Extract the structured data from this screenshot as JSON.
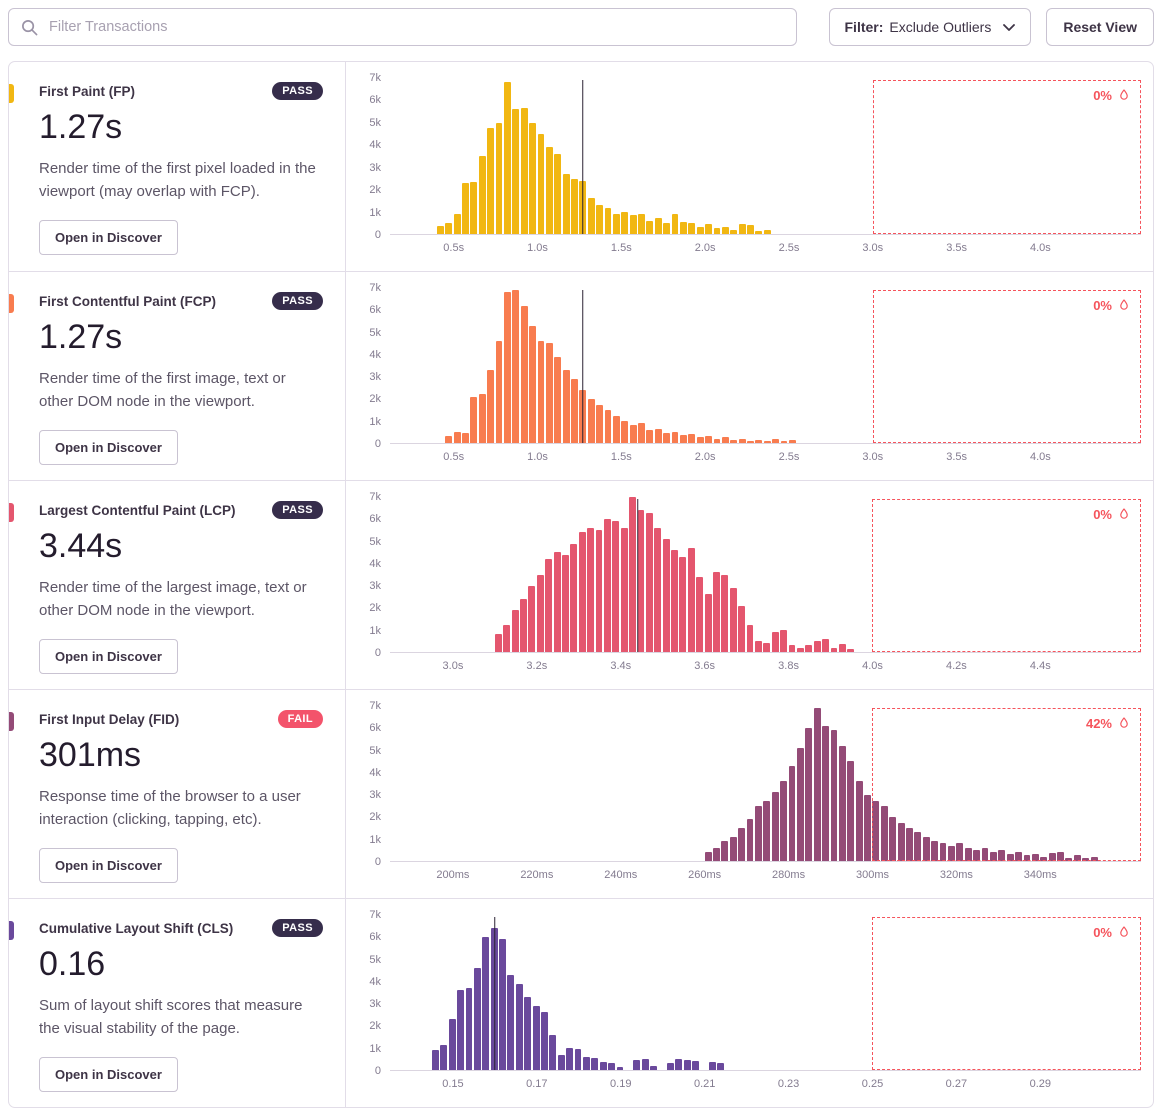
{
  "topbar": {
    "search_placeholder": "Filter Transactions",
    "filter_label": "Filter:",
    "filter_value": "Exclude Outliers",
    "reset_label": "Reset View"
  },
  "colors": {
    "pass_badge": "#362D4B",
    "fail_badge": "#F3536B",
    "outlier": "#F5545C",
    "marker": "#2B2233"
  },
  "vitals": [
    {
      "name": "First Paint (FP)",
      "badge": "PASS",
      "status": "pass",
      "value": "1.27s",
      "description": "Render time of the first pixel loaded in the viewport (may overlap with FCP).",
      "button": "Open in Discover",
      "color": "#F1B712"
    },
    {
      "name": "First Contentful Paint (FCP)",
      "badge": "PASS",
      "status": "pass",
      "value": "1.27s",
      "description": "Render time of the first image, text or other DOM node in the viewport.",
      "button": "Open in Discover",
      "color": "#F87C4F"
    },
    {
      "name": "Largest Contentful Paint (LCP)",
      "badge": "PASS",
      "status": "pass",
      "value": "3.44s",
      "description": "Render time of the largest image, text or other DOM node in the viewport.",
      "button": "Open in Discover",
      "color": "#E4566E"
    },
    {
      "name": "First Input Delay (FID)",
      "badge": "FAIL",
      "status": "fail",
      "value": "301ms",
      "description": "Response time of the browser to a user interaction (clicking, tapping, etc).",
      "button": "Open in Discover",
      "color": "#944B77"
    },
    {
      "name": "Cumulative Layout Shift (CLS)",
      "badge": "PASS",
      "status": "pass",
      "value": "0.16",
      "description": "Sum of layout shift scores that measure the visual stability of the page.",
      "button": "Open in Discover",
      "color": "#6A499C"
    }
  ],
  "chart_data": [
    {
      "type": "bar",
      "title": "First Paint histogram",
      "color": "#F1B712",
      "ymax": 7000,
      "yticks": [
        "0",
        "1k",
        "2k",
        "3k",
        "4k",
        "5k",
        "6k",
        "7k"
      ],
      "xmin": 0.12,
      "xmax": 4.6,
      "bin_start": 0.4,
      "bin_width": 0.05,
      "counts": [
        350,
        500,
        900,
        2300,
        2350,
        3500,
        4750,
        5000,
        6800,
        5600,
        5650,
        5000,
        4500,
        3900,
        3600,
        2700,
        2450,
        2400,
        1600,
        1300,
        1150,
        900,
        1000,
        850,
        900,
        600,
        700,
        500,
        900,
        550,
        500,
        300,
        450,
        250,
        300,
        200,
        450,
        400,
        150,
        200
      ],
      "xticks": {
        "values": [
          0.5,
          1.0,
          1.5,
          2.0,
          2.5,
          3.0,
          3.5,
          4.0
        ],
        "labels": [
          "0.5s",
          "1.0s",
          "1.5s",
          "2.0s",
          "2.5s",
          "3.0s",
          "3.5s",
          "4.0s"
        ]
      },
      "marker": 1.27,
      "outlier_start": 3.0,
      "outlier_label": "0%"
    },
    {
      "type": "bar",
      "title": "First Contentful Paint histogram",
      "color": "#F87C4F",
      "ymax": 7000,
      "yticks": [
        "0",
        "1k",
        "2k",
        "3k",
        "4k",
        "5k",
        "6k",
        "7k"
      ],
      "xmin": 0.12,
      "xmax": 4.6,
      "bin_start": 0.45,
      "bin_width": 0.05,
      "counts": [
        300,
        500,
        450,
        2100,
        2200,
        3300,
        4600,
        6800,
        6900,
        6200,
        5300,
        4600,
        4500,
        3900,
        3300,
        2900,
        2400,
        2000,
        1700,
        1500,
        1200,
        1000,
        800,
        900,
        600,
        650,
        450,
        500,
        350,
        400,
        250,
        300,
        200,
        250,
        150,
        200,
        100,
        150,
        100,
        200,
        100,
        150
      ],
      "xticks": {
        "values": [
          0.5,
          1.0,
          1.5,
          2.0,
          2.5,
          3.0,
          3.5,
          4.0
        ],
        "labels": [
          "0.5s",
          "1.0s",
          "1.5s",
          "2.0s",
          "2.5s",
          "3.0s",
          "3.5s",
          "4.0s"
        ]
      },
      "marker": 1.27,
      "outlier_start": 3.0,
      "outlier_label": "0%"
    },
    {
      "type": "bar",
      "title": "Largest Contentful Paint histogram",
      "color": "#E4566E",
      "ymax": 7000,
      "yticks": [
        "0",
        "1k",
        "2k",
        "3k",
        "4k",
        "5k",
        "6k",
        "7k"
      ],
      "xmin": 2.85,
      "xmax": 4.64,
      "bin_start": 3.1,
      "bin_width": 0.02,
      "counts": [
        800,
        1200,
        1900,
        2400,
        3000,
        3500,
        4200,
        4500,
        4400,
        4900,
        5400,
        5600,
        5500,
        6000,
        5900,
        5600,
        7000,
        6400,
        6300,
        5600,
        5100,
        4600,
        4300,
        4700,
        3400,
        2600,
        3600,
        3500,
        2900,
        2100,
        1200,
        500,
        400,
        900,
        1000,
        300,
        200,
        300,
        500,
        600,
        200,
        350,
        150
      ],
      "xticks": {
        "values": [
          3.0,
          3.2,
          3.4,
          3.6,
          3.8,
          4.0,
          4.2,
          4.4
        ],
        "labels": [
          "3.0s",
          "3.2s",
          "3.4s",
          "3.6s",
          "3.8s",
          "4.0s",
          "4.2s",
          "4.4s"
        ]
      },
      "marker": 3.44,
      "outlier_start": 4.0,
      "outlier_label": "0%"
    },
    {
      "type": "bar",
      "title": "First Input Delay histogram",
      "color": "#944B77",
      "ymax": 7000,
      "yticks": [
        "0",
        "1k",
        "2k",
        "3k",
        "4k",
        "5k",
        "6k",
        "7k"
      ],
      "xmin": 185,
      "xmax": 364,
      "bin_start": 260,
      "bin_width": 2,
      "counts": [
        400,
        600,
        900,
        1100,
        1500,
        1900,
        2500,
        2700,
        3100,
        3600,
        4300,
        5100,
        6000,
        6900,
        6100,
        5900,
        5200,
        4500,
        3600,
        3000,
        2700,
        2500,
        2000,
        1700,
        1500,
        1300,
        1100,
        900,
        800,
        700,
        800,
        600,
        500,
        600,
        400,
        500,
        300,
        400,
        250,
        300,
        200,
        350,
        400,
        150,
        250,
        150,
        200
      ],
      "xticks": {
        "values": [
          200,
          220,
          240,
          260,
          280,
          300,
          320,
          340
        ],
        "labels": [
          "200ms",
          "220ms",
          "240ms",
          "260ms",
          "280ms",
          "300ms",
          "320ms",
          "340ms"
        ]
      },
      "marker": null,
      "outlier_start": 300,
      "outlier_label": "42%"
    },
    {
      "type": "bar",
      "title": "Cumulative Layout Shift histogram",
      "color": "#6A499C",
      "ymax": 7000,
      "yticks": [
        "0",
        "1k",
        "2k",
        "3k",
        "4k",
        "5k",
        "6k",
        "7k"
      ],
      "xmin": 0.135,
      "xmax": 0.314,
      "bin_start": 0.145,
      "bin_width": 0.002,
      "counts": [
        900,
        1150,
        2300,
        3600,
        3700,
        4600,
        6000,
        6400,
        5900,
        4300,
        3900,
        3300,
        2900,
        2600,
        1600,
        700,
        1000,
        950,
        600,
        550,
        350,
        300,
        150,
        0,
        450,
        500,
        200,
        0,
        300,
        500,
        450,
        400,
        0,
        350,
        300
      ],
      "xticks": {
        "values": [
          0.15,
          0.17,
          0.19,
          0.21,
          0.23,
          0.25,
          0.27,
          0.29
        ],
        "labels": [
          "0.15",
          "0.17",
          "0.19",
          "0.21",
          "0.23",
          "0.25",
          "0.27",
          "0.29"
        ]
      },
      "marker": 0.16,
      "outlier_start": 0.25,
      "outlier_label": "0%"
    }
  ]
}
